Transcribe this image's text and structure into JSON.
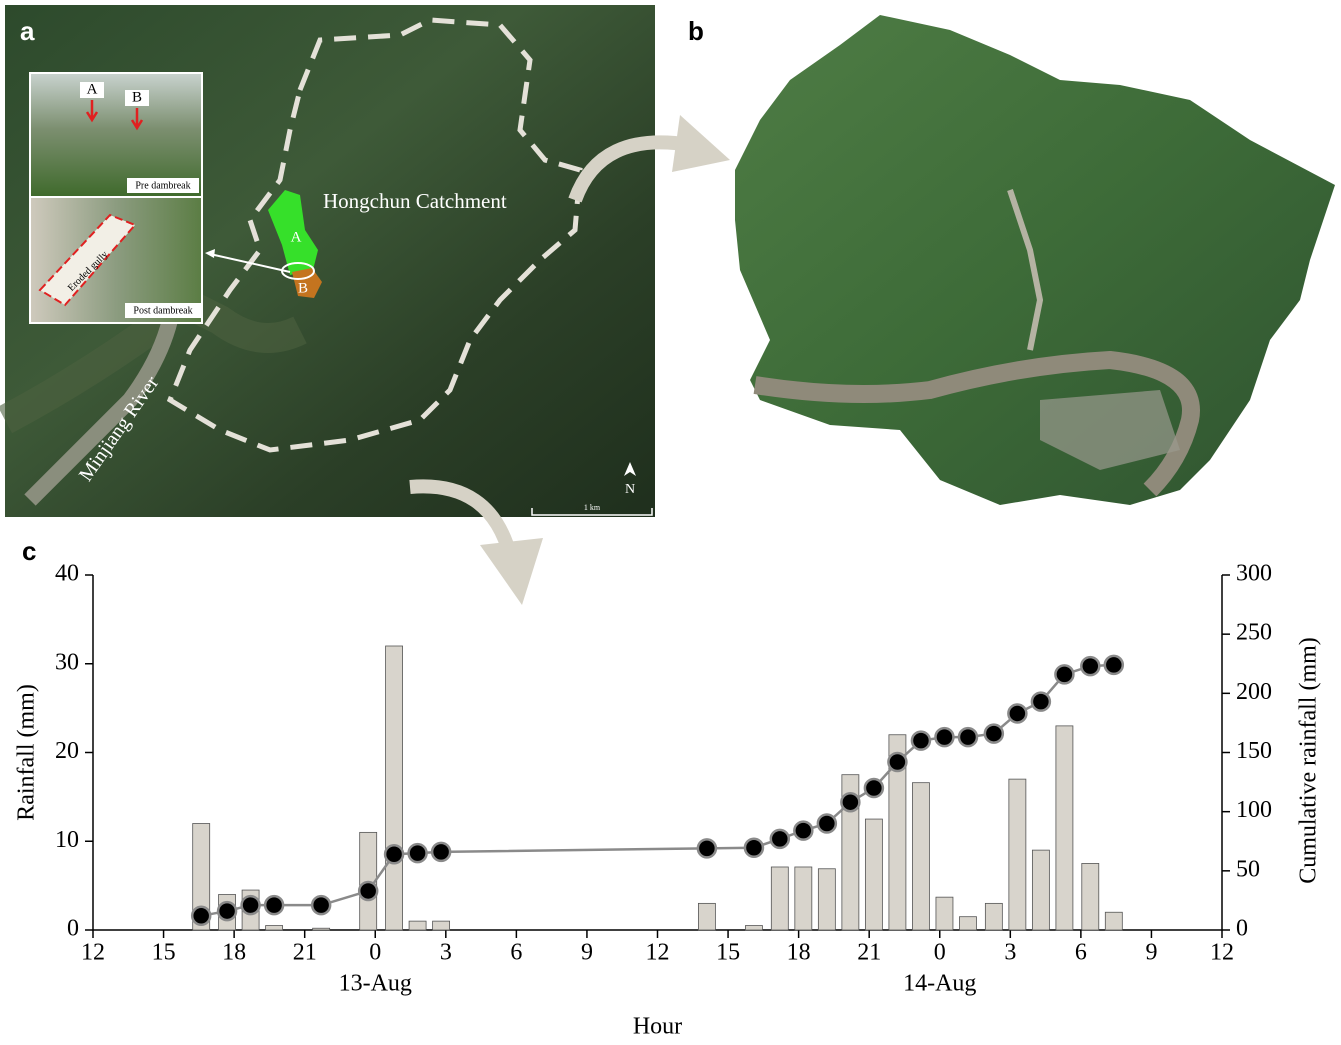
{
  "panels": {
    "a": {
      "label": "a",
      "catchment": "Hongchun Catchment",
      "river": "Minjiang River",
      "zones": [
        "A",
        "B"
      ],
      "inset": {
        "markers": [
          "A",
          "B"
        ],
        "pre": "Pre dambreak",
        "post": "Post dambreak",
        "gully": "Eroded gully"
      },
      "north": "N",
      "scale": "1 km"
    },
    "b": {
      "label": "b"
    },
    "c": {
      "label": "c"
    }
  },
  "chart_data": {
    "type": "combo",
    "xlabel": "Hour",
    "ylabel": "Rainfall (mm)",
    "y2label": "Cumulative rainfall (mm)",
    "xlim": [
      0,
      48
    ],
    "xticks": [
      {
        "value": 0,
        "label": "12"
      },
      {
        "value": 3,
        "label": "15"
      },
      {
        "value": 6,
        "label": "18"
      },
      {
        "value": 9,
        "label": "21"
      },
      {
        "value": 12,
        "label": "0"
      },
      {
        "value": 15,
        "label": "3"
      },
      {
        "value": 18,
        "label": "6"
      },
      {
        "value": 21,
        "label": "9"
      },
      {
        "value": 24,
        "label": "12"
      },
      {
        "value": 27,
        "label": "15"
      },
      {
        "value": 30,
        "label": "18"
      },
      {
        "value": 33,
        "label": "21"
      },
      {
        "value": 36,
        "label": "0"
      },
      {
        "value": 39,
        "label": "3"
      },
      {
        "value": 42,
        "label": "6"
      },
      {
        "value": 45,
        "label": "9"
      },
      {
        "value": 48,
        "label": "12"
      }
    ],
    "x_groups": [
      {
        "value": 12,
        "label": "13-Aug"
      },
      {
        "value": 36,
        "label": "14-Aug"
      }
    ],
    "ylim": [
      0,
      40
    ],
    "yticks": [
      0,
      10,
      20,
      30,
      40
    ],
    "y2lim": [
      0,
      300
    ],
    "y2ticks": [
      0,
      50,
      100,
      150,
      200,
      250,
      300
    ],
    "x": [
      4.6,
      5.7,
      6.7,
      7.7,
      9.7,
      11.7,
      12.8,
      13.8,
      14.8,
      26.1,
      28.1,
      29.2,
      30.2,
      31.2,
      32.2,
      33.2,
      34.2,
      35.2,
      36.2,
      37.2,
      38.3,
      39.3,
      40.3,
      41.3,
      42.4,
      43.4
    ],
    "series": [
      {
        "type": "bar",
        "color": "#d8d4cc",
        "values": [
          12,
          4,
          4.5,
          0.5,
          0.2,
          11,
          32,
          1,
          1,
          3,
          0.5,
          7.1,
          7.1,
          6.9,
          17.5,
          12.5,
          22,
          16.6,
          3.7,
          1.5,
          3,
          17,
          9,
          23,
          7.5,
          2
        ]
      },
      {
        "type": "line",
        "axis": "y2",
        "color": "#8a8a8a",
        "values": [
          12,
          16,
          21,
          21,
          21,
          33,
          64,
          65,
          66,
          69,
          69.5,
          77,
          84,
          90,
          108,
          120,
          142,
          160,
          163,
          163,
          166,
          183,
          193,
          216,
          223,
          224
        ]
      }
    ]
  }
}
